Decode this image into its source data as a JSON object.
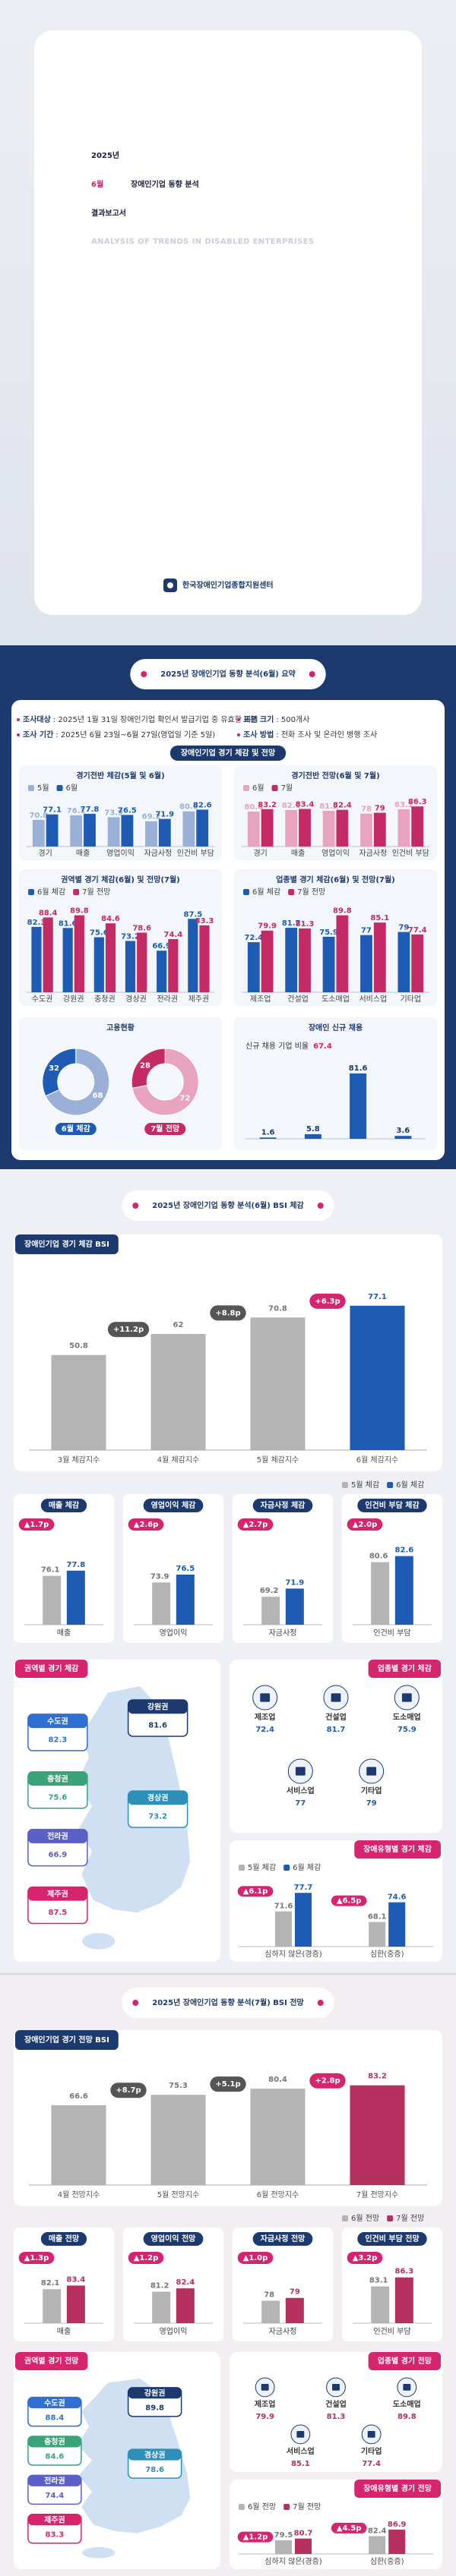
{
  "cover": {
    "year": "2025년",
    "month": "6월",
    "title": "장애인기업 동향 분석",
    "report": "결과보고서",
    "subtitle": "ANALYSIS OF TRENDS IN DISABLED ENTERPRISES",
    "org": "한국장애인기업종합지원센터"
  },
  "summary": {
    "title": "2025년 장애인기업 동향 분석(6월) 요약",
    "info": [
      {
        "label": "조사대상",
        "text": ": 2025년 1월 31일 장애인기업 확인서 발급기업 중 유효한 기업"
      },
      {
        "label": "표본 크기",
        "text": ": 500개사"
      },
      {
        "label": "조사 기간",
        "text": ": 2025년 6월 23일~6월 27일(영업일 기준 5일)"
      },
      {
        "label": "조사 방법",
        "text": ": 전화 조사 및 온라인 병행 조사"
      }
    ],
    "center_label": "장애인기업 경기 체감 및 전망",
    "charts": [
      {
        "type": "bar",
        "title": "경기전반 체감(5월 및 6월)",
        "categories": [
          "경기",
          "매출",
          "영업이익",
          "자금사정",
          "인건비 부담"
        ],
        "series": [
          {
            "name": "5월",
            "color": "#9ab0d6",
            "values": [
              70.8,
              76.1,
              73.9,
              69.2,
              80.6
            ]
          },
          {
            "name": "6월",
            "color": "#1d5bb5",
            "values": [
              77.1,
              77.8,
              76.5,
              71.9,
              82.6
            ]
          }
        ],
        "ylim": [
          40,
          90
        ]
      },
      {
        "type": "bar",
        "title": "경기전반 전망(6월 및 7월)",
        "categories": [
          "경기",
          "매출",
          "영업이익",
          "자금사정",
          "인건비 부담"
        ],
        "series": [
          {
            "name": "6월",
            "color": "#e8a3bd",
            "values": [
              80.4,
              82.1,
              81.2,
              78.0,
              83.1
            ]
          },
          {
            "name": "7월",
            "color": "#c42a63",
            "values": [
              83.2,
              83.4,
              82.4,
              79.0,
              86.3
            ]
          }
        ],
        "ylim": [
          40,
          90
        ]
      },
      {
        "type": "bar",
        "title": "권역별 경기 체감(6월) 및 전망(7월)",
        "categories": [
          "수도권",
          "강원권",
          "충청권",
          "경상권",
          "전라권",
          "제주권"
        ],
        "series": [
          {
            "name": "6월 체감",
            "color": "#1d5bb5",
            "values": [
              82.3,
              81.6,
              75.6,
              73.2,
              66.9,
              87.5
            ]
          },
          {
            "name": "7월 전망",
            "color": "#c42a63",
            "values": [
              88.4,
              89.8,
              84.6,
              78.6,
              74.4,
              83.3
            ]
          }
        ],
        "ylim": [
          40,
          95
        ]
      },
      {
        "type": "bar",
        "title": "업종별 경기 체감(6월) 및 전망(7월)",
        "categories": [
          "제조업",
          "건설업",
          "도소매업",
          "서비스업",
          "기타업"
        ],
        "series": [
          {
            "name": "6월 체감",
            "color": "#1d5bb5",
            "values": [
              72.4,
              81.7,
              75.9,
              77.0,
              79.0
            ]
          },
          {
            "name": "7월 전망",
            "color": "#c42a63",
            "values": [
              79.9,
              81.3,
              89.8,
              85.1,
              77.4
            ]
          }
        ],
        "ylim": [
          40,
          95
        ]
      }
    ],
    "employment": {
      "title": "고용현황",
      "donuts": [
        {
          "caption": "6월 체감",
          "values": [
            68.0,
            32.0
          ],
          "colors": [
            "#9ab0d6",
            "#1d5bb5"
          ]
        },
        {
          "caption": "7월 전망",
          "values": [
            72.0,
            28.0
          ],
          "colors": [
            "#e8a3bd",
            "#c42a63"
          ]
        }
      ]
    },
    "hiring": {
      "title": "장애인 신규 채용",
      "stat_label": "신규 채용 기업 비율",
      "stat_value": 67.4,
      "categories": [
        null,
        null,
        null,
        null
      ],
      "values": [
        1.6,
        5.8,
        81.6,
        3.6
      ],
      "color": "#1d5bb5",
      "ylim": [
        0,
        90
      ]
    }
  },
  "bsi_now": {
    "title": "2025년 장애인기업 동향 분석(6월) BSI 체감",
    "main": {
      "tab": "장애인기업 경기 체감 BSI",
      "categories": [
        "3월 체감지수",
        "4월 체감지수",
        "5월 체감지수",
        "6월 체감지수"
      ],
      "values": [
        50.8,
        62.0,
        70.8,
        77.1
      ],
      "colors": [
        "#b4b4b4",
        "#b4b4b4",
        "#b4b4b4",
        "#1d5bb5"
      ],
      "changes": [
        "+11.2p",
        "+8.8p",
        "+6.3p"
      ],
      "change_colors": [
        "#555555",
        "#555555",
        "#d6246e"
      ],
      "ylim": [
        0,
        90
      ]
    },
    "small": {
      "legend": [
        "5월 체감",
        "6월 체감"
      ],
      "colors": [
        "#b4b4b4",
        "#1d5bb5"
      ],
      "ylim": [
        60,
        90
      ],
      "items": [
        {
          "tab": "매출 체감",
          "category": "매출",
          "values": [
            76.1,
            77.8
          ],
          "change": "▲1.7p"
        },
        {
          "tab": "영업이익 체감",
          "category": "영업이익",
          "values": [
            73.9,
            76.5
          ],
          "change": "▲2.6p"
        },
        {
          "tab": "자금사정 체감",
          "category": "자금사정",
          "values": [
            69.2,
            71.9
          ],
          "change": "▲2.7p"
        },
        {
          "tab": "인건비 부담 체감",
          "category": "인건비 부담",
          "values": [
            80.6,
            82.6
          ],
          "change": "▲2.0p"
        }
      ]
    },
    "region": {
      "tab": "권역별 경기 체감",
      "regions": [
        {
          "name": "수도권",
          "value": 82.3,
          "color": "#2e6fd1"
        },
        {
          "name": "강원권",
          "value": 81.6,
          "color": "#1d3a6e"
        },
        {
          "name": "충청권",
          "value": 75.6,
          "color": "#3aa37a"
        },
        {
          "name": "경상권",
          "value": 73.2,
          "color": "#2e8fb8"
        },
        {
          "name": "전라권",
          "value": 66.9,
          "color": "#5b5fc7"
        },
        {
          "name": "제주권",
          "value": 87.5,
          "color": "#d6246e"
        }
      ]
    },
    "industry": {
      "tab": "업종별 경기 체감",
      "items": [
        {
          "name": "제조업",
          "value": 72.4
        },
        {
          "name": "건설업",
          "value": 81.7
        },
        {
          "name": "도소매업",
          "value": 75.9
        },
        {
          "name": "서비스업",
          "value": 77.0
        },
        {
          "name": "기타업",
          "value": 79.0
        }
      ]
    },
    "type": {
      "tab": "장애유형별 경기 체감",
      "legend": [
        "5월 체감",
        "6월 체감"
      ],
      "colors": [
        "#b4b4b4",
        "#1d5bb5"
      ],
      "ylim": [
        60,
        80
      ],
      "groups": [
        {
          "name": "심하지 않은(경증)",
          "values": [
            71.6,
            77.7
          ],
          "change": "▲6.1p"
        },
        {
          "name": "심한(중증)",
          "values": [
            68.1,
            74.6
          ],
          "change": "▲6.5p"
        }
      ]
    }
  },
  "bsi_outlook": {
    "title": "2025년 장애인기업 동향 분석(7월) BSI 전망",
    "main": {
      "tab": "장애인기업 경기 전망 BSI",
      "categories": [
        "4월 전망지수",
        "5월 전망지수",
        "6월 전망지수",
        "7월 전망지수"
      ],
      "values": [
        66.6,
        75.3,
        80.4,
        83.2
      ],
      "colors": [
        "#b4b4b4",
        "#b4b4b4",
        "#b4b4b4",
        "#b5305f"
      ],
      "changes": [
        "+8.7p",
        "+5.1p",
        "+2.8p"
      ],
      "change_colors": [
        "#555555",
        "#555555",
        "#d6246e"
      ],
      "ylim": [
        0,
        90
      ]
    },
    "small": {
      "legend": [
        "6월 전망",
        "7월 전망"
      ],
      "colors": [
        "#b4b4b4",
        "#b5305f"
      ],
      "ylim": [
        70,
        90
      ],
      "items": [
        {
          "tab": "매출 전망",
          "category": "매출",
          "values": [
            82.1,
            83.4
          ],
          "change": "▲1.3p"
        },
        {
          "tab": "영업이익 전망",
          "category": "영업이익",
          "values": [
            81.2,
            82.4
          ],
          "change": "▲1.2p"
        },
        {
          "tab": "자금사정 전망",
          "category": "자금사정",
          "values": [
            78.0,
            79.0
          ],
          "change": "▲1.0p"
        },
        {
          "tab": "인건비 부담 전망",
          "category": "인건비 부담",
          "values": [
            83.1,
            86.3
          ],
          "change": "▲3.2p"
        }
      ]
    },
    "region": {
      "tab": "권역별 경기 전망",
      "regions": [
        {
          "name": "수도권",
          "value": 88.4,
          "color": "#2e6fd1"
        },
        {
          "name": "강원권",
          "value": 89.8,
          "color": "#1d3a6e"
        },
        {
          "name": "충청권",
          "value": 84.6,
          "color": "#3aa37a"
        },
        {
          "name": "경상권",
          "value": 78.6,
          "color": "#2e8fb8"
        },
        {
          "name": "전라권",
          "value": 74.4,
          "color": "#5b5fc7"
        },
        {
          "name": "제주권",
          "value": 83.3,
          "color": "#d6246e"
        }
      ]
    },
    "industry": {
      "tab": "업종별 경기 전망",
      "items": [
        {
          "name": "제조업",
          "value": 79.9
        },
        {
          "name": "건설업",
          "value": 81.3
        },
        {
          "name": "도소매업",
          "value": 89.8
        },
        {
          "name": "서비스업",
          "value": 85.1
        },
        {
          "name": "기타업",
          "value": 77.4
        }
      ]
    },
    "type": {
      "tab": "장애유형별 경기 전망",
      "legend": [
        "6월 전망",
        "7월 전망"
      ],
      "colors": [
        "#b4b4b4",
        "#b5305f"
      ],
      "ylim": [
        70,
        90
      ],
      "groups": [
        {
          "name": "심하지 않은(경증)",
          "values": [
            79.5,
            80.7
          ],
          "change": "▲1.2p"
        },
        {
          "name": "심한(중증)",
          "values": [
            82.4,
            86.9
          ],
          "change": "▲4.5p"
        }
      ]
    }
  }
}
